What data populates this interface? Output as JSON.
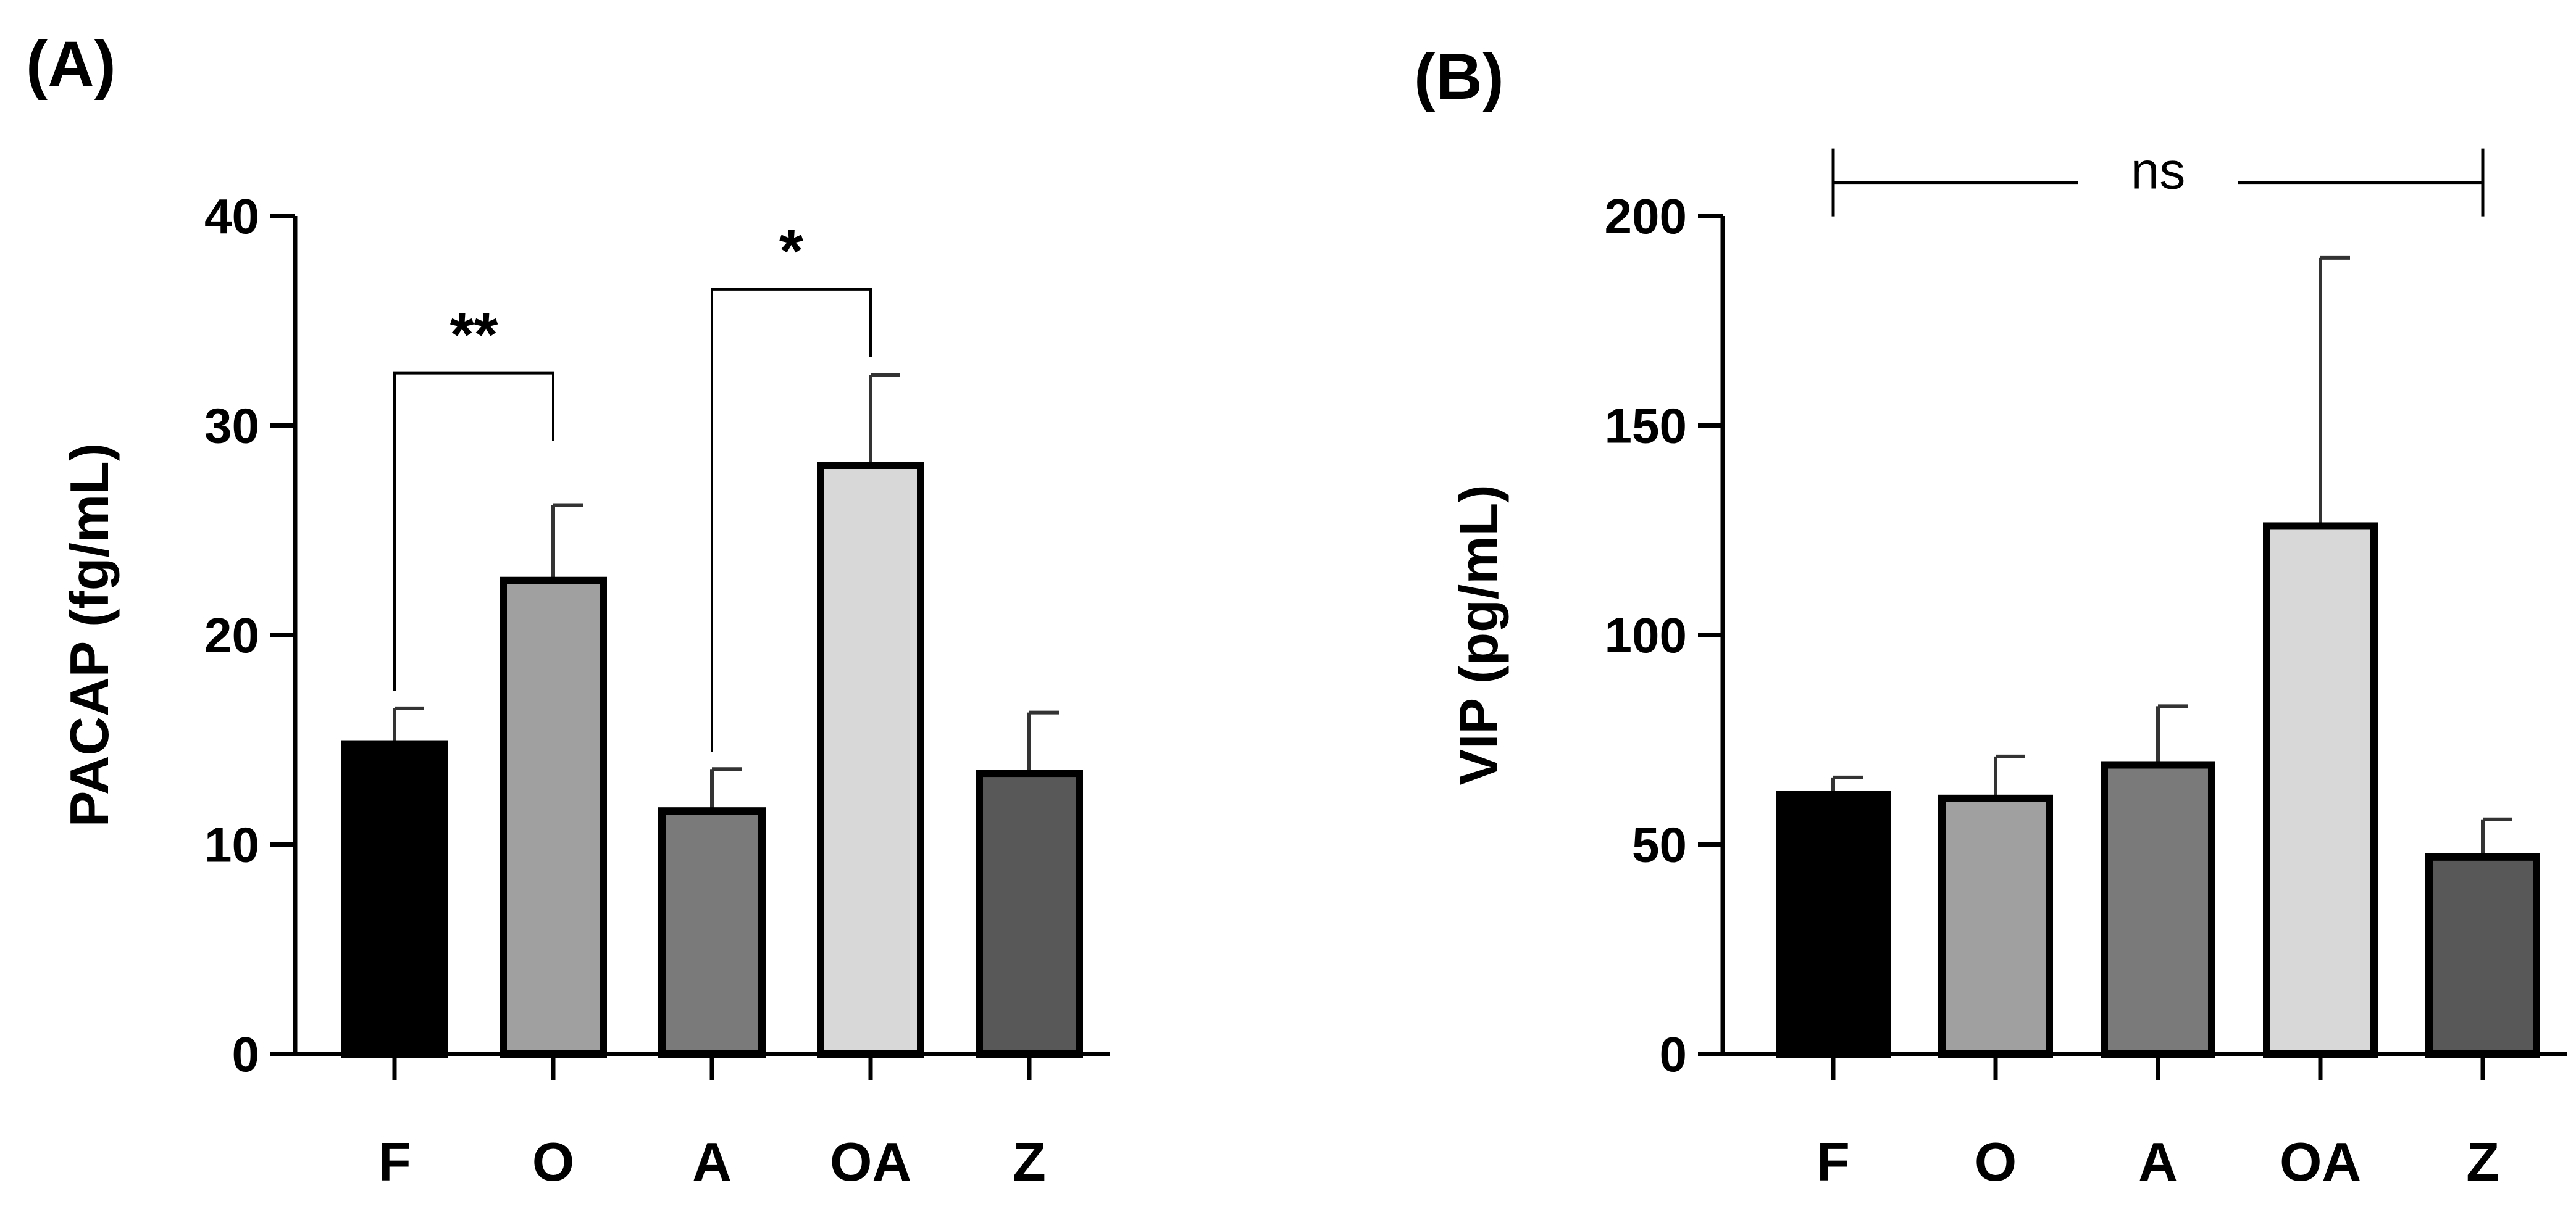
{
  "chart_data": [
    {
      "type": "bar",
      "panel_label": "(A)",
      "categories": [
        "F",
        "O",
        "A",
        "OA",
        "Z"
      ],
      "values": [
        14.8,
        22.6,
        11.6,
        28.1,
        13.4
      ],
      "errors": [
        1.7,
        3.6,
        2.0,
        4.3,
        2.9
      ],
      "bar_colors": [
        "#000000",
        "#a0a0a0",
        "#7a7a7a",
        "#d8d8d8",
        "#585858"
      ],
      "ylabel": "PACAP (fg/mL)",
      "xlabel": "",
      "ylim": [
        0,
        40
      ],
      "yticks": [
        0,
        10,
        20,
        30,
        40
      ],
      "brackets": [
        {
          "from": 0,
          "to": 1,
          "label": "**",
          "y": 32.5
        },
        {
          "from": 2,
          "to": 3,
          "label": "*",
          "y": 36.5
        }
      ]
    },
    {
      "type": "bar",
      "panel_label": "(B)",
      "categories": [
        "F",
        "O",
        "A",
        "OA",
        "Z"
      ],
      "values": [
        62,
        61,
        69,
        126,
        47
      ],
      "errors": [
        4,
        10,
        14,
        64,
        9
      ],
      "bar_colors": [
        "#000000",
        "#a0a0a0",
        "#7a7a7a",
        "#d8d8d8",
        "#585858"
      ],
      "ylabel": "VIP (pg/mL)",
      "xlabel": "",
      "ylim": [
        0,
        200
      ],
      "yticks": [
        0,
        50,
        100,
        150,
        200
      ],
      "brackets": [
        {
          "from": 0,
          "to": 4,
          "label": "ns",
          "y": 208
        }
      ]
    }
  ]
}
